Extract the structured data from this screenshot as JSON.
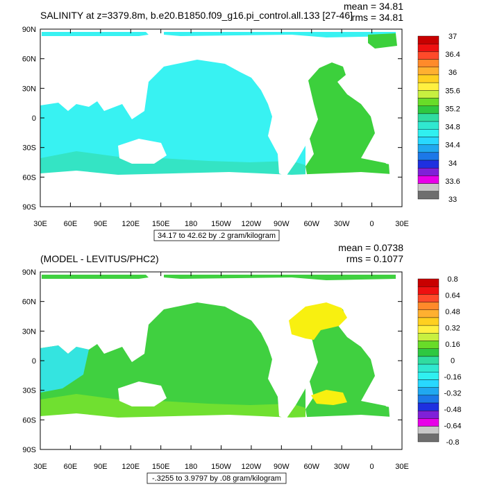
{
  "panels": [
    {
      "title": "SALINITY at z=3379.8m, b.e20.B1850.f09_g16.pi_control.all.133 [27-46]",
      "stats": {
        "mean": "mean = 34.81",
        "rms": "rms = 34.81"
      },
      "range_label": "34.17 to 42.62 by .2 gram/kilogram",
      "colorbar": {
        "labels": [
          "37",
          "36.4",
          "36",
          "35.6",
          "35.2",
          "34.8",
          "34.4",
          "34",
          "33.6",
          "33"
        ],
        "colors": [
          "#c80000",
          "#ee1010",
          "#ff4a2a",
          "#ff8a2a",
          "#ffb030",
          "#ffd020",
          "#fff040",
          "#c8f040",
          "#68dc28",
          "#2ec840",
          "#30dca0",
          "#30e8d0",
          "#30f0f0",
          "#28d8ff",
          "#20a8f0",
          "#1c78e8",
          "#1e30e0",
          "#8020d8",
          "#e800e8",
          "#c8c8c8",
          "#6e6e6e"
        ]
      },
      "x_ticks": [
        "30E",
        "60E",
        "90E",
        "120E",
        "150E",
        "180",
        "150W",
        "120W",
        "90W",
        "60W",
        "30W",
        "0",
        "30E"
      ],
      "y_ticks": [
        "90N",
        "60N",
        "30N",
        "0",
        "30S",
        "60S",
        "90S"
      ]
    },
    {
      "title": "(MODEL - LEVITUS/PHC2)",
      "stats": {
        "mean": "mean = 0.0738",
        "rms": "rms = 0.1077"
      },
      "range_label": "-.3255 to 3.9797 by .08 gram/kilogram",
      "colorbar": {
        "labels": [
          "0.8",
          "0.64",
          "0.48",
          "0.32",
          "0.16",
          "0",
          "-0.16",
          "-0.32",
          "-0.48",
          "-0.64",
          "-0.8"
        ],
        "colors": [
          "#c80000",
          "#ee1010",
          "#ff4a2a",
          "#ff8a2a",
          "#ffb030",
          "#ffd020",
          "#fff040",
          "#c8f040",
          "#68dc28",
          "#2ec840",
          "#30dca0",
          "#30e8d0",
          "#30f0f0",
          "#28d8ff",
          "#20a8f0",
          "#1c78e8",
          "#1e30e0",
          "#8020d8",
          "#e800e8",
          "#c8c8c8",
          "#6e6e6e"
        ]
      },
      "x_ticks": [
        "30E",
        "60E",
        "90E",
        "120E",
        "150E",
        "180",
        "150W",
        "120W",
        "90W",
        "60W",
        "30W",
        "0",
        "30E"
      ],
      "y_ticks": [
        "90N",
        "60N",
        "30N",
        "0",
        "30S",
        "60S",
        "90S"
      ]
    }
  ],
  "colors": {
    "ocean_top": "#38f2f2",
    "ocean_top_south": "#34e4c4",
    "atlantic_top": "#3cd03c",
    "ocean_diff_main": "#40d040",
    "ocean_diff_south": "#70e030",
    "ocean_diff_west": "#34e4e0",
    "ocean_diff_yellow": "#f8f010",
    "land": "#ffffff"
  }
}
